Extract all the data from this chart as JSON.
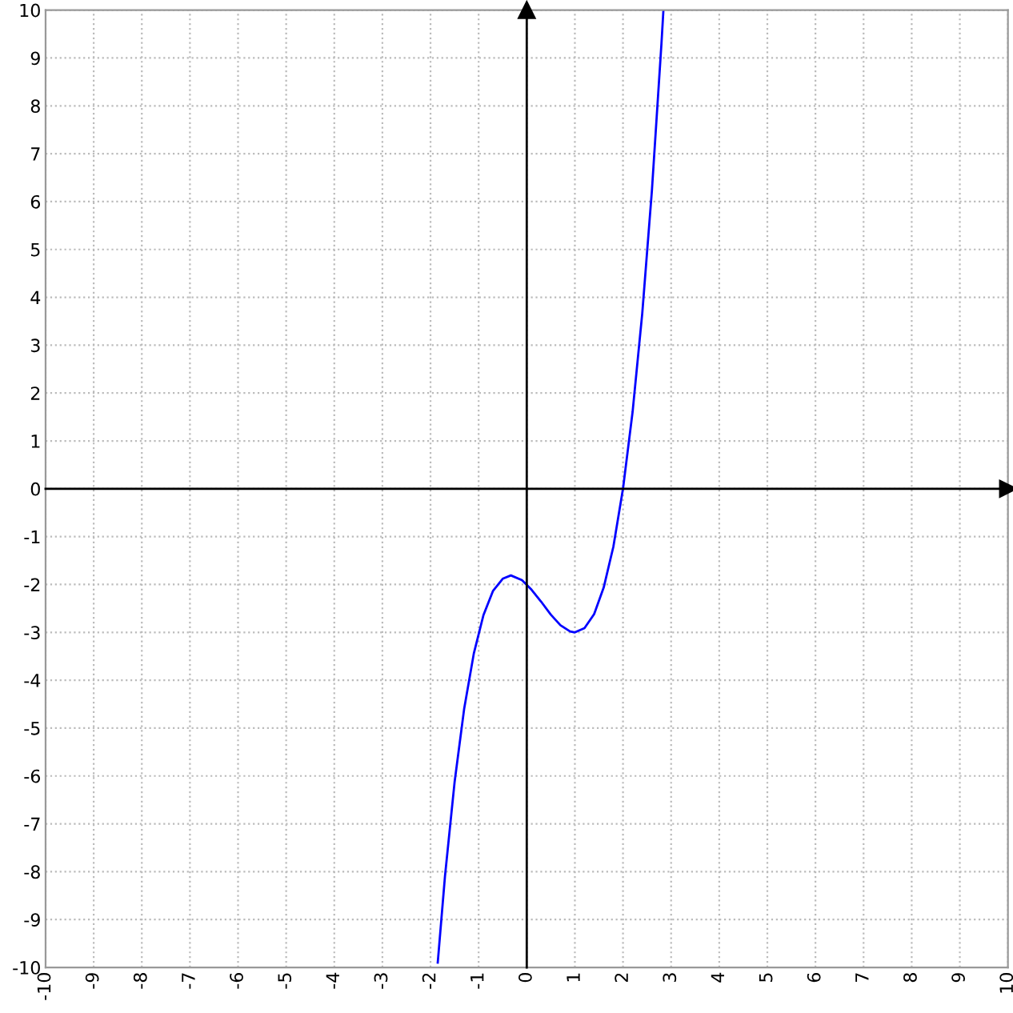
{
  "chart_data": {
    "type": "line",
    "x": [
      -1.85,
      -1.7,
      -1.5,
      -1.3,
      -1.1,
      -0.9,
      -0.7,
      -0.5,
      -0.33,
      -0.1,
      0.1,
      0.3,
      0.5,
      0.7,
      0.9,
      1.0,
      1.2,
      1.4,
      1.6,
      1.8,
      2.0,
      2.2,
      2.4,
      2.6,
      2.8,
      2.84
    ],
    "series": [
      {
        "color": "#0000ff",
        "values": [
          -9.9,
          -8.1,
          -6.13,
          -4.59,
          -3.44,
          -2.64,
          -2.13,
          -1.88,
          -1.81,
          -1.91,
          -2.11,
          -2.36,
          -2.63,
          -2.85,
          -2.98,
          -3.0,
          -2.91,
          -2.62,
          -2.06,
          -1.21,
          0.0,
          1.61,
          3.66,
          6.22,
          9.31,
          10.0
        ]
      }
    ],
    "xlim": [
      -10,
      10
    ],
    "ylim": [
      -10,
      10
    ],
    "xticks": [
      -10,
      -9,
      -8,
      -7,
      -6,
      -5,
      -4,
      -3,
      -2,
      -1,
      0,
      1,
      2,
      3,
      4,
      5,
      6,
      7,
      8,
      9,
      10
    ],
    "yticks": [
      -10,
      -9,
      -8,
      -7,
      -6,
      -5,
      -4,
      -3,
      -2,
      -1,
      0,
      1,
      2,
      3,
      4,
      5,
      6,
      7,
      8,
      9,
      10
    ],
    "grid": true,
    "marker": "none",
    "line_style": "solid"
  }
}
